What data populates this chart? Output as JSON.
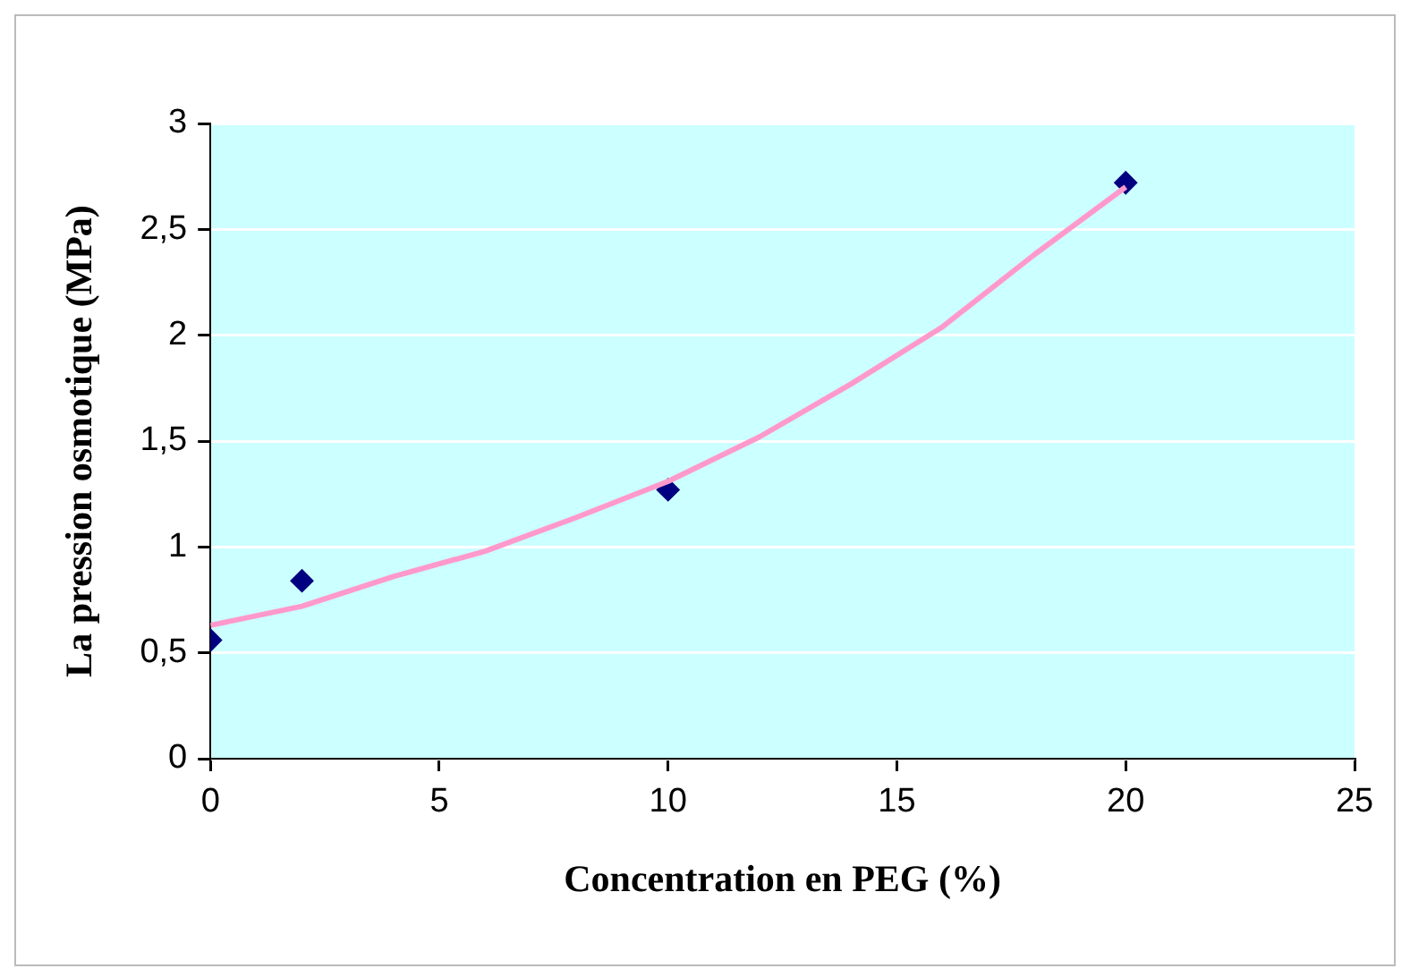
{
  "chart_data": {
    "type": "scatter",
    "xlabel": "Concentration en PEG (%)",
    "ylabel": "La pression osmotique (MPa)",
    "xlim": [
      0,
      25
    ],
    "xticks": [
      0,
      5,
      10,
      15,
      20,
      25
    ],
    "ylim": [
      0,
      3
    ],
    "yticks": [
      0,
      {
        "value": 0.5,
        "label": "0,5"
      },
      1,
      {
        "value": 1.5,
        "label": "1,5"
      },
      2,
      {
        "value": 2.5,
        "label": "2,5"
      },
      3
    ],
    "grid": "y",
    "legend": false,
    "marker": "diamond",
    "series": [
      {
        "color": "#000080",
        "x": [
          0,
          2,
          10,
          20
        ],
        "values": [
          0.56,
          0.84,
          1.27,
          2.72
        ]
      },
      {
        "type": "line",
        "color": "#ff99cc",
        "marker": "none",
        "x": [
          0,
          2,
          4,
          6,
          8,
          10,
          12,
          14,
          16,
          18,
          20
        ],
        "values": [
          0.63,
          0.72,
          0.86,
          0.98,
          1.14,
          1.31,
          1.52,
          1.77,
          2.04,
          2.38,
          2.7
        ]
      }
    ]
  }
}
